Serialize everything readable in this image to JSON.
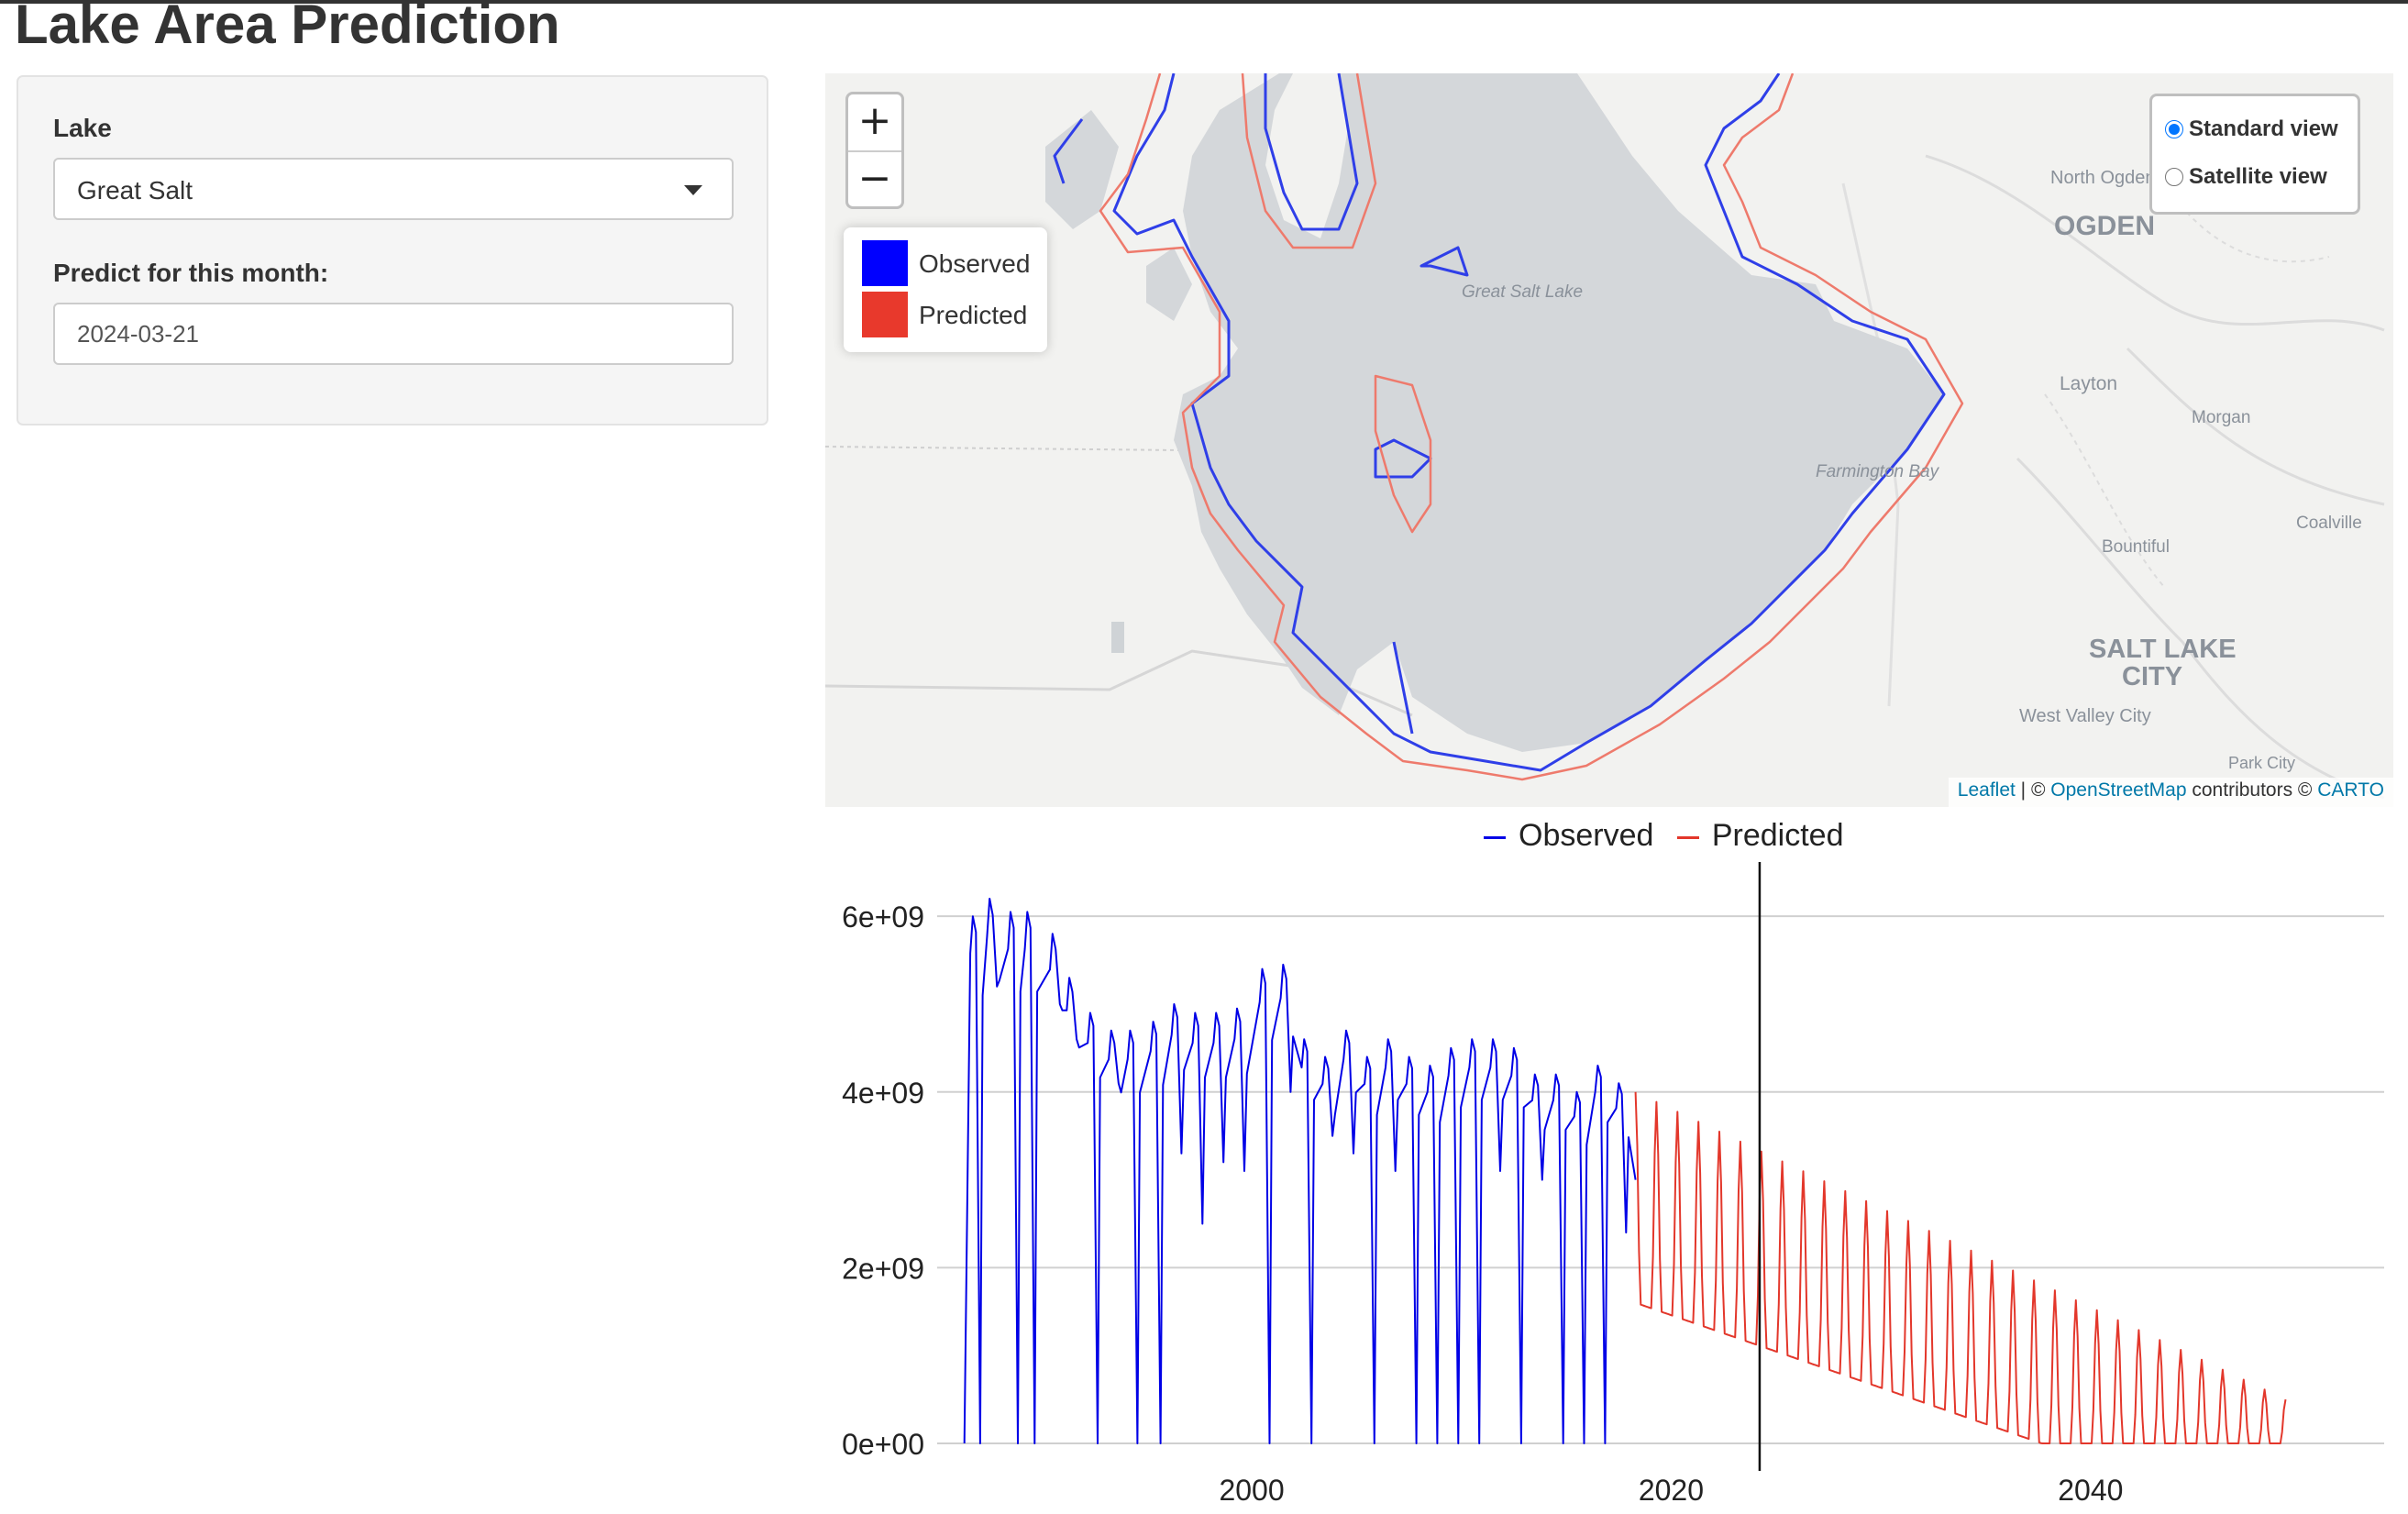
{
  "app": {
    "title": "Lake Area Prediction"
  },
  "sidebar": {
    "lake_label": "Lake",
    "lake_value": "Great Salt",
    "month_label": "Predict for this month:",
    "month_value": "2024-03-21"
  },
  "map": {
    "zoom_in": "+",
    "zoom_out": "−",
    "legend": [
      {
        "label": "Observed",
        "color": "#0000ff"
      },
      {
        "label": "Predicted",
        "color": "#e8392c"
      }
    ],
    "layers": {
      "standard": "Standard view",
      "satellite": "Satellite view",
      "selected": "standard"
    },
    "attribution": {
      "leaflet": "Leaflet",
      "sep1": " | © ",
      "osm": "OpenStreetMap",
      "mid": " contributors © ",
      "carto": "CARTO"
    },
    "place_labels": [
      "North Ogden",
      "OGDEN",
      "Great Salt Lake",
      "Layton",
      "Morgan",
      "Farmington Bay",
      "Bountiful",
      "Coalville",
      "SALT LAKE",
      "CITY",
      "West Valley City",
      "Park City"
    ]
  },
  "chart_data": {
    "type": "line",
    "title": "",
    "xlabel": "",
    "ylabel": "",
    "xlim": [
      1985,
      2054
    ],
    "ylim": [
      0,
      6200000000
    ],
    "x_ticks": [
      2000,
      2020,
      2040
    ],
    "x_tick_labels": [
      "2000",
      "2020",
      "2040"
    ],
    "y_ticks": [
      0,
      2000000000,
      4000000000,
      6000000000
    ],
    "y_tick_labels": [
      "0e+00",
      "2e+09",
      "4e+09",
      "6e+09"
    ],
    "grid": "horizontal",
    "legend_position": "top",
    "vline_x": 2024.22,
    "series": [
      {
        "name": "Observed",
        "color": "#0000e6",
        "observed_start": 1986.0,
        "observed_end": 2018.3,
        "summer_x": [
          1986.7,
          1987.5,
          1988.5,
          1989.3,
          1990.5,
          1991.3,
          1992.3,
          1993.3,
          1994.2,
          1995.3,
          1996.3,
          1997.3,
          1998.3,
          1999.3,
          2000.5,
          2001.5,
          2002.5,
          2003.5,
          2004.5,
          2005.5,
          2006.5,
          2007.5,
          2008.5,
          2009.5,
          2010.5,
          2011.5,
          2012.5,
          2013.5,
          2014.5,
          2015.5,
          2016.5,
          2017.5
        ],
        "summer_y": [
          6000000000,
          6200000000,
          6050000000,
          6050000000,
          5800000000,
          5300000000,
          4900000000,
          4700000000,
          4700000000,
          4800000000,
          5000000000,
          4900000000,
          4900000000,
          4950000000,
          5400000000,
          5450000000,
          4600000000,
          4400000000,
          4700000000,
          4400000000,
          4600000000,
          4400000000,
          4300000000,
          4500000000,
          4600000000,
          4600000000,
          4500000000,
          4200000000,
          4200000000,
          4000000000,
          4300000000,
          4100000000
        ],
        "winter_y": [
          0,
          5200000000,
          0,
          0,
          5000000000,
          4600000000,
          0,
          4100000000,
          0,
          0,
          3300000000,
          2500000000,
          3200000000,
          3100000000,
          0,
          4000000000,
          0,
          3500000000,
          3300000000,
          0,
          3100000000,
          0,
          0,
          0,
          0,
          3100000000,
          0,
          3000000000,
          0,
          0,
          0,
          2400000000
        ]
      },
      {
        "name": "Predicted",
        "color": "#e3372b",
        "start_x": 2018.3,
        "end_x": 2049.3,
        "peak_start": 4000000000,
        "peak_end": 500000000,
        "trough_start": 1600000000,
        "trough_end": 0
      }
    ]
  }
}
